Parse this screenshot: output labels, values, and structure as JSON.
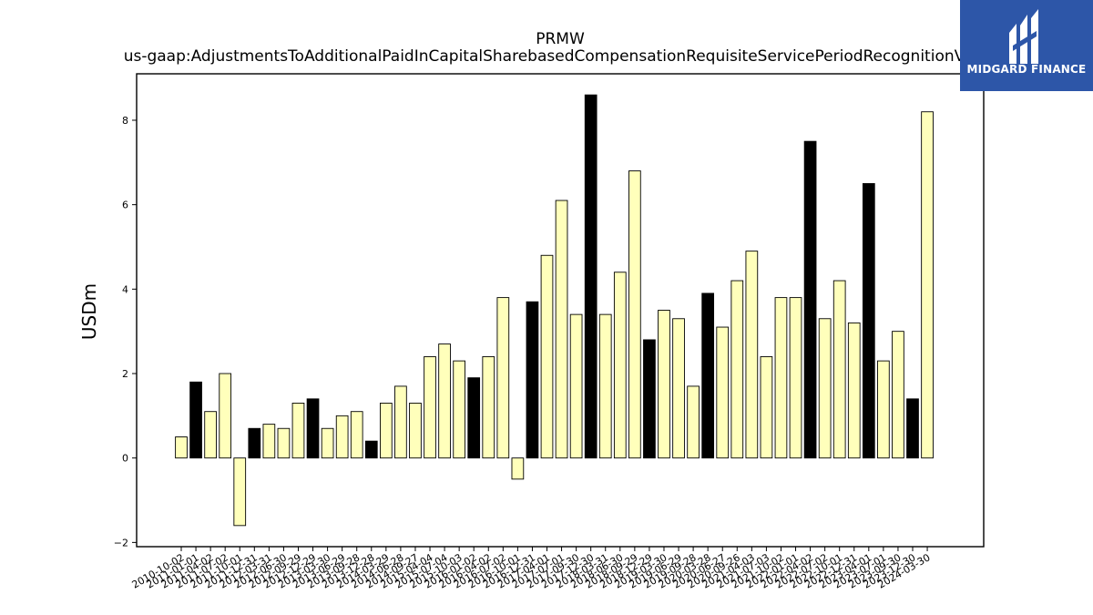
{
  "chart_data": {
    "type": "bar",
    "title": "PRMW",
    "subtitle": "us-gaap:AdjustmentsToAdditionalPaidInCapitalSharebasedCompensationRequisiteServicePeriodRecognitionValue",
    "xlabel": "",
    "ylabel": "USDm",
    "ylim": [
      -2.1,
      9.1
    ],
    "yticks": [
      -2,
      0,
      2,
      4,
      6,
      8
    ],
    "grid": false,
    "categories": [
      "2010-10-02",
      "2011-01-01",
      "2011-04-02",
      "2011-07-02",
      "2011-10-01",
      "2011-12-31",
      "2012-03-31",
      "2012-06-30",
      "2012-09-29",
      "2012-12-29",
      "2013-03-30",
      "2013-06-29",
      "2013-09-28",
      "2013-12-28",
      "2014-03-29",
      "2014-06-28",
      "2014-09-27",
      "2015-04-04",
      "2015-07-04",
      "2015-10-03",
      "2016-01-02",
      "2016-04-02",
      "2016-07-02",
      "2016-10-01",
      "2016-12-31",
      "2017-04-01",
      "2017-07-01",
      "2017-09-30",
      "2017-12-30",
      "2018-03-31",
      "2018-06-30",
      "2018-09-29",
      "2018-12-29",
      "2019-03-30",
      "2019-06-29",
      "2019-09-28",
      "2020-03-28",
      "2020-06-27",
      "2020-09-26",
      "2021-04-03",
      "2021-07-03",
      "2021-10-02",
      "2022-01-01",
      "2022-04-02",
      "2022-07-02",
      "2022-10-01",
      "2022-12-31",
      "2023-04-01",
      "2023-07-01",
      "2023-09-30",
      "2023-12-30",
      "2024-03-30"
    ],
    "values": [
      0.5,
      1.8,
      1.1,
      2.0,
      -1.6,
      0.7,
      0.8,
      0.7,
      1.3,
      1.4,
      0.7,
      1.0,
      1.1,
      0.4,
      1.3,
      1.7,
      1.3,
      2.4,
      2.7,
      2.3,
      1.9,
      2.4,
      3.8,
      -0.5,
      3.7,
      4.8,
      6.1,
      3.4,
      8.6,
      3.4,
      4.4,
      6.8,
      2.8,
      3.5,
      3.3,
      1.7,
      3.9,
      3.1,
      4.2,
      4.9,
      2.4,
      3.8,
      3.8,
      7.5,
      3.3,
      4.2,
      3.2,
      6.5,
      2.3,
      3.0,
      1.4,
      8.2
    ],
    "highlight": [
      false,
      true,
      false,
      false,
      false,
      true,
      false,
      false,
      false,
      true,
      false,
      false,
      false,
      true,
      false,
      false,
      false,
      false,
      false,
      false,
      true,
      false,
      false,
      false,
      true,
      false,
      false,
      false,
      true,
      false,
      false,
      false,
      true,
      false,
      false,
      false,
      true,
      false,
      false,
      false,
      false,
      false,
      false,
      true,
      false,
      false,
      false,
      true,
      false,
      false,
      true,
      false
    ],
    "colors": {
      "bar": "#ffffbb",
      "highlight": "#000000",
      "edge": "#000000"
    }
  },
  "logo": {
    "text": "MIDGARD FINANCE",
    "color": "#2d56a8"
  }
}
